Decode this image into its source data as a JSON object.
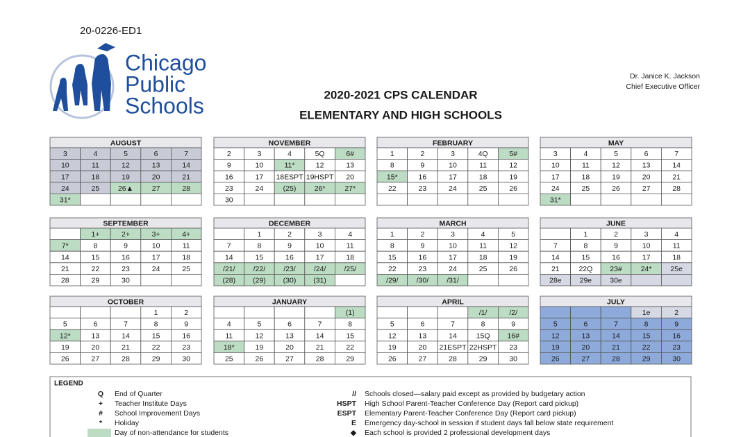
{
  "doc_id": "20-0226-ED1",
  "logo": {
    "lines": [
      "Chicago",
      "Public",
      "Schools"
    ]
  },
  "title": [
    "2020-2021 CPS CALENDAR",
    "ELEMENTARY AND HIGH SCHOOLS"
  ],
  "signatory": {
    "name": "Dr. Janice K. Jackson",
    "role": "Chief Executive Officer"
  },
  "palette": {
    "d": "#c9ccd6",
    "g": "#bcdcc4",
    "b": "#8eaadb",
    "l": "#d6d9e4",
    "h": "#e8e8ec"
  },
  "months": [
    {
      "name": "AUGUST",
      "weeks": [
        [
          "3",
          "4",
          "5",
          "6",
          "7"
        ],
        [
          "10",
          "11",
          "12",
          "13",
          "14"
        ],
        [
          "17",
          "18",
          "19",
          "20",
          "21"
        ],
        [
          "24",
          "25",
          "26▲",
          "27",
          "28"
        ],
        [
          "31*",
          null,
          null,
          null,
          null
        ]
      ],
      "shade": [
        "ddddd",
        "ddddd",
        "ddddd",
        "ddggg",
        "g...."
      ]
    },
    {
      "name": "NOVEMBER",
      "weeks": [
        [
          "2",
          "3",
          "4",
          "5Q",
          "6#"
        ],
        [
          "9",
          "10",
          "11*",
          "12",
          "13"
        ],
        [
          "16",
          "17",
          "18ESPT",
          "19HSPT",
          "20"
        ],
        [
          "23",
          "24",
          "(25)",
          "26*",
          "27*"
        ],
        [
          "30",
          null,
          null,
          null,
          null
        ]
      ],
      "shade": [
        "....g",
        "..g..",
        ".....",
        "..ggg",
        "....."
      ]
    },
    {
      "name": "FEBRUARY",
      "weeks": [
        [
          "1",
          "2",
          "3",
          "4Q",
          "5#"
        ],
        [
          "8",
          "9",
          "10",
          "11",
          "12"
        ],
        [
          "15*",
          "16",
          "17",
          "18",
          "19"
        ],
        [
          "22",
          "23",
          "24",
          "25",
          "26"
        ],
        [
          null,
          null,
          null,
          null,
          null
        ]
      ],
      "shade": [
        "....g",
        ".....",
        "g....",
        ".....",
        "....."
      ]
    },
    {
      "name": "MAY",
      "weeks": [
        [
          "3",
          "4",
          "5",
          "6",
          "7"
        ],
        [
          "10",
          "11",
          "12",
          "13",
          "14"
        ],
        [
          "17",
          "18",
          "19",
          "20",
          "21"
        ],
        [
          "24",
          "25",
          "26",
          "27",
          "28"
        ],
        [
          "31*",
          null,
          null,
          null,
          null
        ]
      ],
      "shade": [
        ".....",
        ".....",
        ".....",
        ".....",
        "g...."
      ]
    },
    {
      "name": "SEPTEMBER",
      "weeks": [
        [
          null,
          "1+",
          "2+",
          "3+",
          "4+"
        ],
        [
          "7*",
          "8",
          "9",
          "10",
          "11"
        ],
        [
          "14",
          "15",
          "16",
          "17",
          "18"
        ],
        [
          "21",
          "22",
          "23",
          "24",
          "25"
        ],
        [
          "28",
          "29",
          "30",
          null,
          null
        ]
      ],
      "shade": [
        ".gggg",
        "g....",
        ".....",
        ".....",
        "....."
      ]
    },
    {
      "name": "DECEMBER",
      "weeks": [
        [
          null,
          "1",
          "2",
          "3",
          "4"
        ],
        [
          "7",
          "8",
          "9",
          "10",
          "11"
        ],
        [
          "14",
          "15",
          "16",
          "17",
          "18"
        ],
        [
          "/21/",
          "/22/",
          "/23/",
          "/24/",
          "/25/"
        ],
        [
          "(28)",
          "(29)",
          "(30)",
          "(31)",
          null
        ]
      ],
      "shade": [
        ".....",
        ".....",
        ".....",
        "ggggg",
        "gggg."
      ]
    },
    {
      "name": "MARCH",
      "weeks": [
        [
          "1",
          "2",
          "3",
          "4",
          "5"
        ],
        [
          "8",
          "9",
          "10",
          "11",
          "12"
        ],
        [
          "15",
          "16",
          "17",
          "18",
          "19"
        ],
        [
          "22",
          "23",
          "24",
          "25",
          "26"
        ],
        [
          "/29/",
          "/30/",
          "/31/",
          null,
          null
        ]
      ],
      "shade": [
        ".....",
        ".....",
        ".....",
        ".....",
        "ggg.."
      ]
    },
    {
      "name": "JUNE",
      "weeks": [
        [
          null,
          "1",
          "2",
          "3",
          "4"
        ],
        [
          "7",
          "8",
          "9",
          "10",
          "11"
        ],
        [
          "14",
          "15",
          "16",
          "17",
          "18"
        ],
        [
          "21",
          "22Q",
          "23#",
          "24*",
          "25e"
        ],
        [
          "28e",
          "29e",
          "30e",
          null,
          null
        ]
      ],
      "shade": [
        ".....",
        ".....",
        ".....",
        "..ggl",
        "lllll"
      ]
    },
    {
      "name": "OCTOBER",
      "weeks": [
        [
          null,
          null,
          null,
          "1",
          "2"
        ],
        [
          "5",
          "6",
          "7",
          "8",
          "9"
        ],
        [
          "12*",
          "13",
          "14",
          "15",
          "16"
        ],
        [
          "19",
          "20",
          "21",
          "22",
          "23"
        ],
        [
          "26",
          "27",
          "28",
          "29",
          "30"
        ]
      ],
      "shade": [
        ".....",
        ".....",
        "g....",
        ".....",
        "....."
      ]
    },
    {
      "name": "JANUARY",
      "weeks": [
        [
          null,
          null,
          null,
          null,
          "(1)"
        ],
        [
          "4",
          "5",
          "6",
          "7",
          "8"
        ],
        [
          "11",
          "12",
          "13",
          "14",
          "15"
        ],
        [
          "18*",
          "19",
          "20",
          "21",
          "22"
        ],
        [
          "25",
          "26",
          "27",
          "28",
          "29"
        ]
      ],
      "shade": [
        "....g",
        ".....",
        ".....",
        "g....",
        "....."
      ]
    },
    {
      "name": "APRIL",
      "weeks": [
        [
          null,
          null,
          null,
          "/1/",
          "/2/"
        ],
        [
          "5",
          "6",
          "7",
          "8",
          "9"
        ],
        [
          "12",
          "13",
          "14",
          "15Q",
          "16#"
        ],
        [
          "19",
          "20",
          "21ESPT",
          "22HSPT",
          "23"
        ],
        [
          "26",
          "27",
          "28",
          "29",
          "30"
        ]
      ],
      "shade": [
        "...gg",
        ".....",
        "....g",
        ".....",
        "....."
      ]
    },
    {
      "name": "JULY",
      "weeks": [
        [
          null,
          null,
          null,
          "1e",
          "2"
        ],
        [
          "5",
          "6",
          "7",
          "8",
          "9"
        ],
        [
          "12",
          "13",
          "14",
          "15",
          "16"
        ],
        [
          "19",
          "20",
          "21",
          "22",
          "23"
        ],
        [
          "26",
          "27",
          "28",
          "29",
          "30"
        ]
      ],
      "shade": [
        "bbbll",
        "bbbbb",
        "bbbbb",
        "bbbbb",
        "bbbbb"
      ]
    }
  ],
  "legend": {
    "title": "LEGEND",
    "left": [
      {
        "symbol": "Q",
        "text": "End of Quarter"
      },
      {
        "symbol": "+",
        "text": "Teacher Institute Days"
      },
      {
        "symbol": "#",
        "text": "School Improvement Days"
      },
      {
        "symbol": "*",
        "text": "Holiday"
      },
      {
        "symbol": null,
        "text": "Day of non-attendance for students"
      }
    ],
    "right": [
      {
        "symbol": "//",
        "text": "Schools closed—salary paid except as provided by budgetary action"
      },
      {
        "symbol": "HSPT",
        "text": "High School Parent-Teacher Conference Day (Report card pickup)"
      },
      {
        "symbol": "ESPT",
        "text": "Elementary Parent-Teacher Conference Day (Report card pickup)"
      },
      {
        "symbol": "E",
        "text": "Emergency day-school in session if student days fall below state requirement"
      },
      {
        "symbol": "◆",
        "text": "Each school is provided 2 professional development days"
      }
    ]
  }
}
